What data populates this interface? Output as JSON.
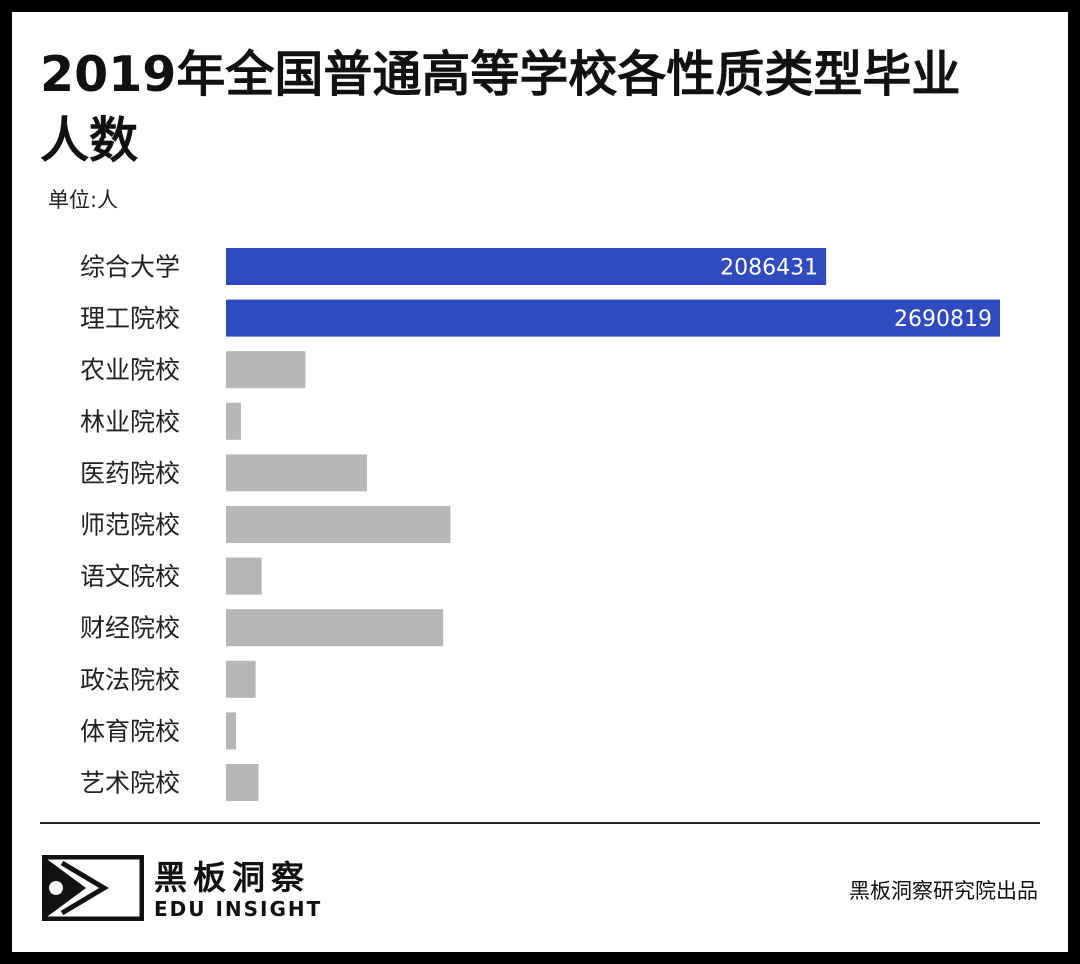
{
  "title": "2019年全国普通高等学校各性质类型毕业人数",
  "unit_label": "单位:人",
  "brand": {
    "cn": "黑板洞察",
    "en": "EDU INSIGHT",
    "logo_icon": "edu-insight-logo-icon"
  },
  "credit": "黑板洞察研究院出品",
  "colors": {
    "highlight": "#2f4bbf",
    "default": "#b7b7b7",
    "label_text": "#ffffff"
  },
  "chart_data": {
    "type": "bar",
    "orientation": "horizontal",
    "categories": [
      "综合大学",
      "理工院校",
      "农业院校",
      "林业院校",
      "医药院校",
      "师范院校",
      "语文院校",
      "财经院校",
      "政法院校",
      "体育院校",
      "艺术院校"
    ],
    "values": [
      2086431,
      2690819,
      276000,
      52000,
      490000,
      780000,
      124000,
      755000,
      103000,
      35000,
      113000
    ],
    "labeled_values": [
      "2086431",
      "2690819",
      null,
      null,
      null,
      null,
      null,
      null,
      null,
      null,
      null
    ],
    "highlighted": [
      true,
      true,
      false,
      false,
      false,
      false,
      false,
      false,
      false,
      false,
      false
    ],
    "xlim": [
      0,
      2690819
    ],
    "grid": false,
    "legend": "none"
  }
}
